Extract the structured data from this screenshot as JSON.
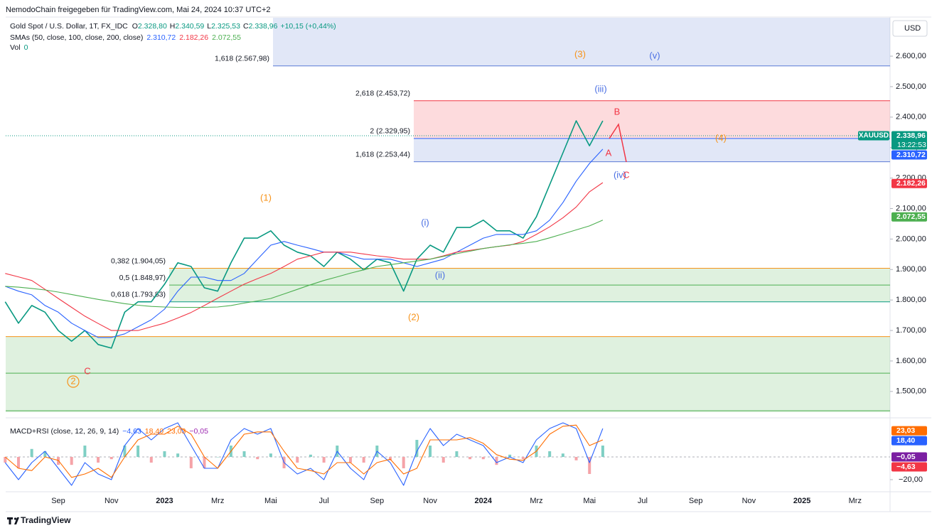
{
  "header": {
    "text": "NemodoChain freigegeben für TradingView.com, Mai 24, 2024 10:37 UTC+2"
  },
  "footer": {
    "text": "TradingView"
  },
  "chart_data": [
    {
      "type": "line",
      "currency": "USD",
      "ohlc_labels": [
        "O",
        "H",
        "L",
        "C"
      ],
      "ohlc_value_labels": [
        "2.328,80",
        "2.340,59",
        "2.325,53",
        "2.338,96"
      ],
      "change_label": "+10,15 (+0,44%)",
      "indicator": {
        "name": "SMAs (50, close, 100, close, 200, close)",
        "value_labels": [
          "2.310,72",
          "2.182,26",
          "2.072,55"
        ]
      },
      "volume": {
        "label": "Vol",
        "value": 0
      },
      "categories": [
        null,
        null,
        null,
        null,
        "Sep",
        null,
        null,
        null,
        "Nov",
        null,
        null,
        null,
        "2023",
        null,
        null,
        null,
        "Mrz",
        null,
        null,
        null,
        "Mai",
        null,
        null,
        null,
        "Jul",
        null,
        null,
        null,
        "Sep",
        null,
        null,
        null,
        "Nov",
        null,
        null,
        null,
        "2024",
        null,
        null,
        null,
        "Mrz",
        null,
        null,
        null,
        "Mai",
        null,
        null,
        null,
        "Jul",
        null,
        null,
        null,
        "Sep",
        null,
        null,
        null,
        "Nov",
        null,
        null,
        null,
        "2025",
        null,
        null,
        null,
        "Mrz",
        null
      ],
      "series": [
        {
          "name": "Gold Spot / U.S. Dollar, 1T, FX_IDC",
          "color": "#089981",
          "values": [
            1794,
            1724,
            1782,
            1760,
            1700,
            1665,
            1700,
            1654,
            1642,
            1760,
            1794,
            1794,
            1852,
            1922,
            1910,
            1840,
            1829,
            1922,
            2003,
            2003,
            2027,
            1980,
            1957,
            1945,
            1910,
            1957,
            1934,
            1899,
            1934,
            1922,
            1829,
            1934,
            1980,
            1957,
            2038,
            2038,
            2062,
            2027,
            2027,
            2003,
            2073,
            2178,
            2283,
            2388,
            2306,
            2388,
            null,
            null,
            null,
            null,
            null,
            null,
            null,
            null,
            null,
            null,
            null,
            null,
            null,
            null,
            null,
            null,
            null,
            null,
            null,
            null
          ]
        },
        {
          "color": "#2962ff",
          "values": [
            1845,
            1829,
            1817,
            1782,
            1760,
            1724,
            1700,
            1677,
            1677,
            1689,
            1712,
            1735,
            1770,
            1829,
            1875,
            1875,
            1864,
            1864,
            1887,
            1934,
            1980,
            1992,
            1980,
            1969,
            1957,
            1957,
            1945,
            1934,
            1934,
            1934,
            1922,
            1910,
            1922,
            1934,
            1957,
            1980,
            2003,
            2015,
            2015,
            2015,
            2027,
            2062,
            2120,
            2190,
            2248,
            2295,
            null,
            null,
            null,
            null,
            null,
            null,
            null,
            null,
            null,
            null,
            null,
            null,
            null,
            null,
            null,
            null,
            null,
            null,
            null,
            null
          ]
        },
        {
          "color": "#f23645",
          "values": [
            1887,
            1876,
            1864,
            1835,
            1805,
            1776,
            1747,
            1723,
            1700,
            1700,
            1700,
            1712,
            1724,
            1741,
            1759,
            1782,
            1806,
            1829,
            1852,
            1870,
            1887,
            1910,
            1934,
            1945,
            1957,
            1957,
            1957,
            1951,
            1945,
            1940,
            1934,
            1934,
            1934,
            1945,
            1957,
            1963,
            1969,
            1975,
            1980,
            1992,
            2015,
            2040,
            2070,
            2105,
            2155,
            2185,
            null,
            null,
            null,
            null,
            null,
            null,
            null,
            null,
            null,
            null,
            null,
            null,
            null,
            null,
            null,
            null,
            null,
            null,
            null,
            null
          ]
        },
        {
          "color": "#4caf50",
          "values": [
            1845,
            1842,
            1838,
            1833,
            1826,
            1818,
            1810,
            1802,
            1795,
            1788,
            1783,
            1779,
            1777,
            1776,
            1776,
            1776,
            1777,
            1782,
            1790,
            1797,
            1805,
            1820,
            1835,
            1850,
            1864,
            1876,
            1888,
            1899,
            1910,
            1916,
            1922,
            1928,
            1934,
            1943,
            1952,
            1960,
            1969,
            1975,
            1981,
            1986,
            1992,
            2004,
            2017,
            2030,
            2043,
            2062,
            null,
            null,
            null,
            null,
            null,
            null,
            null,
            null,
            null,
            null,
            null,
            null,
            null,
            null,
            null,
            null,
            null,
            null,
            null,
            null
          ]
        }
      ],
      "ylim": [
        1432,
        2726
      ],
      "yticks": [
        {
          "value": 1500,
          "label": "1.500,00"
        },
        {
          "value": 1600,
          "label": "1.600,00"
        },
        {
          "value": 1700,
          "label": "1.700,00"
        },
        {
          "value": 1800,
          "label": "1.800,00"
        },
        {
          "value": 1900,
          "label": "1.900,00"
        },
        {
          "value": 2000,
          "label": "2.000,00"
        },
        {
          "value": 2100,
          "label": "2.100,00"
        },
        {
          "value": 2200,
          "label": "2.200,00"
        },
        {
          "value": 2300,
          "label": "2.300,00"
        },
        {
          "value": 2400,
          "label": "2.400,00"
        },
        {
          "value": 2500,
          "label": "2.500,00"
        },
        {
          "value": 2600,
          "label": "2.600,00"
        }
      ],
      "markers": [
        {
          "value": 2338.96,
          "label": "2.338,96",
          "color": "#089981",
          "symbol": "XAUUSD",
          "countdown": "13:22:53"
        },
        {
          "value": 2310.72,
          "label": "2.310,72",
          "color": "#2962ff"
        },
        {
          "value": 2182.26,
          "label": "2.182,26",
          "color": "#f23645"
        },
        {
          "value": 2072.55,
          "label": "2.072,55",
          "color": "#4caf50"
        }
      ],
      "fib_levels": [
        {
          "value": 2567.98,
          "label": "1,618 (2.567,98)",
          "color": "#5b7bd5"
        },
        {
          "value": 2453.72,
          "label": "2,618 (2.453,72)",
          "color": "#f23645"
        },
        {
          "value": 2329.95,
          "label": "2 (2.329,95)",
          "color": "#2962ff"
        },
        {
          "value": 2253.44,
          "label": "1,618 (2.253,44)",
          "color": "#5b7bd5"
        },
        {
          "value": 1904.05,
          "label": "0,382 (1.904,05)",
          "color": "#f7931a"
        },
        {
          "value": 1848.97,
          "label": "0,5 (1.848,97)",
          "color": "#4caf50"
        },
        {
          "value": 1793.83,
          "label": "0,618 (1.793,83)",
          "color": "#089981"
        }
      ],
      "levels": [
        {
          "value": 1680,
          "color": "#f7931a"
        },
        {
          "value": 1560,
          "color": "#4caf50"
        }
      ],
      "annotations": [
        {
          "text": "(3)",
          "color": "#f7931a"
        },
        {
          "text": "(v)",
          "color": "#4a6fe3"
        },
        {
          "text": "(iii)",
          "color": "#4a6fe3"
        },
        {
          "text": "B",
          "color": "#f23645"
        },
        {
          "text": "A",
          "color": "#f23645"
        },
        {
          "text": "(iv)",
          "color": "#4a6fe3"
        },
        {
          "text": "C",
          "color": "#f23645"
        },
        {
          "text": "(4)",
          "color": "#f7931a"
        },
        {
          "text": "(1)",
          "color": "#f7931a"
        },
        {
          "text": "(i)",
          "color": "#4a6fe3"
        },
        {
          "text": "(ii)",
          "color": "#4a6fe3"
        },
        {
          "text": "(2)",
          "color": "#f7931a"
        },
        {
          "text": "C",
          "color": "#f23645"
        },
        {
          "text": "2",
          "color": "#f7931a"
        }
      ]
    },
    {
      "type": "line",
      "title": "MACD+RSI (close, 12, 26, 9, 14)",
      "legend_values": [
        {
          "label": "−4,63",
          "color": "#2962ff"
        },
        {
          "label": "18,40",
          "color": "#ff6d00"
        },
        {
          "label": "23,03",
          "color": "#ff6d00"
        },
        {
          "label": "−0,05",
          "color": "#9c27b0"
        }
      ],
      "series": [
        {
          "color": "#2962ff",
          "values": [
            -5,
            -20,
            -5,
            5,
            -10,
            -25,
            -5,
            -15,
            -20,
            10,
            25,
            15,
            25,
            30,
            10,
            -10,
            -10,
            15,
            25,
            20,
            25,
            -5,
            -15,
            -10,
            -20,
            5,
            -10,
            -20,
            5,
            -5,
            -25,
            5,
            25,
            10,
            20,
            15,
            10,
            -5,
            0,
            -5,
            15,
            25,
            30,
            25,
            -5,
            25,
            null,
            null,
            null,
            null,
            null,
            null,
            null,
            null,
            null,
            null,
            null,
            null,
            null,
            null,
            null,
            null,
            null,
            null,
            null,
            null
          ]
        },
        {
          "color": "#ff6d00",
          "values": [
            0,
            -10,
            -12,
            0,
            -3,
            -18,
            -15,
            -10,
            -18,
            0,
            15,
            20,
            20,
            27,
            20,
            0,
            -10,
            5,
            20,
            22,
            22,
            5,
            -10,
            -12,
            -15,
            -5,
            -5,
            -15,
            -5,
            -2,
            -15,
            -10,
            15,
            15,
            15,
            17,
            12,
            2,
            -2,
            -3,
            5,
            20,
            27,
            28,
            10,
            15,
            null,
            null,
            null,
            null,
            null,
            null,
            null,
            null,
            null,
            null,
            null,
            null,
            null,
            null,
            null,
            null,
            null,
            null,
            null,
            null
          ]
        }
      ],
      "histogram": {
        "up_color": "#7fcfc4",
        "down_color": "#f5a3a8",
        "values": [
          -5,
          -10,
          7,
          5,
          -7,
          -7,
          10,
          -5,
          -2,
          10,
          10,
          -5,
          5,
          3,
          -10,
          -10,
          0,
          10,
          5,
          -2,
          3,
          -10,
          -5,
          2,
          -5,
          10,
          -5,
          -5,
          10,
          -3,
          -10,
          15,
          10,
          -5,
          5,
          -2,
          -2,
          -7,
          2,
          -2,
          10,
          5,
          3,
          -3,
          -15,
          10
        ]
      },
      "ylim": [
        -29.4,
        30
      ],
      "yticks": [
        {
          "value": -20,
          "label": "−20,00"
        }
      ],
      "markers": [
        {
          "value": 23.03,
          "label": "23,03",
          "color": "#ff6d00"
        },
        {
          "value": 18.4,
          "label": "18,40",
          "color": "#2962ff"
        },
        {
          "value": -0.05,
          "label": "−0,05",
          "color": "#7b1fa2"
        },
        {
          "value": -4.63,
          "label": "−4,63",
          "color": "#f23645"
        }
      ]
    }
  ]
}
